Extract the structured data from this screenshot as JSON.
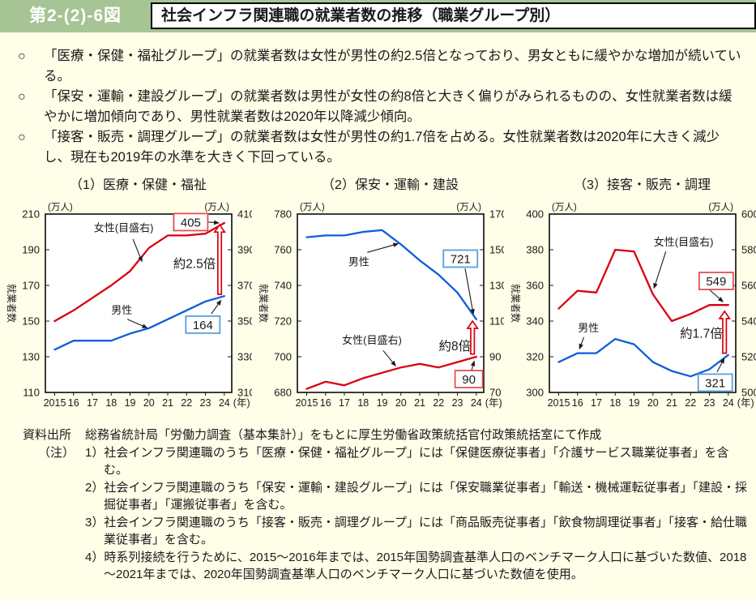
{
  "page": {
    "figure_label": "第2-(2)-6図",
    "title": "社会インフラ関連職の就業者数の推移（職業グループ別）",
    "bullet_marker": "○"
  },
  "bullets": [
    "「医療・保健・福祉グループ」の就業者数は女性が男性の約2.5倍となっており、男女ともに緩やかな増加が続いている。",
    "「保安・運輸・建設グループ」の就業者数は男性が女性の約8倍と大きく偏りがみられるものの、女性就業者数は緩やかに増加傾向であり、男性就業者数は2020年以降減少傾向。",
    "「接客・販売・調理グループ」の就業者数は女性が男性の約1.7倍を占める。女性就業者数は2020年に大きく減少し、現在も2019年の水準を大きく下回っている。"
  ],
  "colors": {
    "red": "#d7000f",
    "blue": "#0b5fd9",
    "red_box": "#e05252",
    "blue_box": "#56a0e0",
    "header_green": "#a6c494",
    "background": "#fffee8"
  },
  "chart_data": [
    {
      "type": "line",
      "number_title": "（1）医療・保健・福祉",
      "unit_left": "(万人)",
      "unit_right": "(万人)",
      "ylabel": "就業者数",
      "left_axis": {
        "min": 110,
        "max": 210,
        "ticks": [
          110,
          130,
          150,
          170,
          190,
          210
        ]
      },
      "right_axis": {
        "min": 310,
        "max": 410,
        "ticks": [
          310,
          330,
          350,
          370,
          390,
          410
        ]
      },
      "x_labels": [
        "2015",
        "16",
        "17",
        "18",
        "19",
        "20",
        "21",
        "22",
        "23",
        "24"
      ],
      "x_unit": "(年)",
      "series": [
        {
          "name": "男性",
          "axis": "left",
          "color": "blue",
          "values": [
            134,
            139,
            139,
            139,
            143,
            146,
            151,
            156,
            161,
            164
          ]
        },
        {
          "name": "女性（目盛右）",
          "axis": "right",
          "color": "red",
          "values": [
            350,
            356,
            363,
            370,
            378,
            391,
            398,
            398,
            399,
            405
          ]
        }
      ],
      "annotations": {
        "series_labels": [
          {
            "text": "女性(目盛右)",
            "tx": 0.42,
            "ty": 0.08,
            "sx": 0.47,
            "sy": 0.14,
            "ax": 0.52,
            "ay": 0.27
          },
          {
            "text": "男性",
            "tx": 0.41,
            "ty": 0.54,
            "sx": 0.44,
            "sy": 0.59,
            "ax": 0.55,
            "ay": 0.64
          }
        ],
        "ratio": {
          "text": "約2.5倍",
          "tx": 0.8,
          "ty": 0.28
        },
        "value_boxes": [
          {
            "text": "405",
            "color": "red",
            "tx": 0.78,
            "ty": 0.045,
            "sx": 0.875,
            "sy": 0.045,
            "ax": 0.935,
            "ay": 0.05
          },
          {
            "text": "164",
            "color": "blue",
            "tx": 0.845,
            "ty": 0.62,
            "sx": 0.89,
            "sy": 0.56,
            "ax": 0.945,
            "ay": 0.48
          }
        ],
        "big_arrow": {
          "x": 0.935,
          "y_from": 0.45,
          "y_to": 0.06
        }
      }
    },
    {
      "type": "line",
      "number_title": "（2）保安・運輸・建設",
      "unit_left": "(万人)",
      "unit_right": "(万人)",
      "ylabel": "就業者数",
      "left_axis": {
        "min": 680,
        "max": 780,
        "ticks": [
          680,
          700,
          720,
          740,
          760,
          780
        ]
      },
      "right_axis": {
        "min": 70,
        "max": 170,
        "ticks": [
          70,
          90,
          110,
          130,
          150,
          170
        ]
      },
      "x_labels": [
        "2015",
        "16",
        "17",
        "18",
        "19",
        "20",
        "21",
        "22",
        "23",
        "24"
      ],
      "x_unit": "(年)",
      "series": [
        {
          "name": "男性",
          "axis": "left",
          "color": "blue",
          "values": [
            767,
            768,
            768,
            770,
            771,
            763,
            754,
            746,
            736,
            721
          ]
        },
        {
          "name": "女性（目盛右）",
          "axis": "right",
          "color": "red",
          "values": [
            72,
            76,
            74,
            78,
            81,
            84,
            86,
            84,
            87,
            90
          ]
        }
      ],
      "annotations": {
        "series_labels": [
          {
            "text": "男性",
            "tx": 0.33,
            "ty": 0.27,
            "sx": 0.375,
            "sy": 0.215,
            "ax": 0.545,
            "ay": 0.165
          },
          {
            "text": "女性(目盛右)",
            "tx": 0.4,
            "ty": 0.71,
            "sx": 0.46,
            "sy": 0.765,
            "ax": 0.53,
            "ay": 0.855
          }
        ],
        "ratio": {
          "text": "約8倍",
          "tx": 0.845,
          "ty": 0.74
        },
        "value_boxes": [
          {
            "text": "721",
            "color": "blue",
            "tx": 0.875,
            "ty": 0.25,
            "sx": 0.9,
            "sy": 0.305,
            "ax": 0.945,
            "ay": 0.565
          },
          {
            "text": "90",
            "color": "red",
            "tx": 0.92,
            "ty": 0.925,
            "sx": 0.935,
            "sy": 0.875,
            "ax": 0.95,
            "ay": 0.82
          }
        ],
        "big_arrow": {
          "x": 0.94,
          "y_from": 0.785,
          "y_to": 0.6
        }
      }
    },
    {
      "type": "line",
      "number_title": "（3）接客・販売・調理",
      "unit_left": "(万人)",
      "unit_right": "(万人)",
      "ylabel": "就業者数",
      "left_axis": {
        "min": 300,
        "max": 400,
        "ticks": [
          300,
          320,
          340,
          360,
          380,
          400
        ]
      },
      "right_axis": {
        "min": 500,
        "max": 600,
        "ticks": [
          500,
          520,
          540,
          560,
          580,
          600
        ]
      },
      "x_labels": [
        "2015",
        "16",
        "17",
        "18",
        "19",
        "20",
        "21",
        "22",
        "23",
        "24"
      ],
      "x_unit": "(年)",
      "series": [
        {
          "name": "男性",
          "axis": "left",
          "color": "blue",
          "values": [
            317,
            322,
            322,
            330,
            327,
            317,
            312,
            309,
            313,
            321
          ]
        },
        {
          "name": "女性（目盛右）",
          "axis": "right",
          "color": "red",
          "values": [
            547,
            557,
            556,
            580,
            579,
            555,
            540,
            544,
            549,
            549
          ]
        }
      ],
      "annotations": {
        "series_labels": [
          {
            "text": "女性(目盛右)",
            "tx": 0.72,
            "ty": 0.16,
            "sx": 0.625,
            "sy": 0.21,
            "ax": 0.56,
            "ay": 0.42
          },
          {
            "text": "男性",
            "tx": 0.21,
            "ty": 0.64,
            "sx": 0.185,
            "sy": 0.69,
            "ax": 0.16,
            "ay": 0.76
          }
        ],
        "ratio": {
          "text": "約1.7倍",
          "tx": 0.815,
          "ty": 0.67
        },
        "value_boxes": [
          {
            "text": "549",
            "color": "red",
            "tx": 0.895,
            "ty": 0.375,
            "sx": 0.86,
            "sy": 0.425,
            "ax": 0.935,
            "ay": 0.495
          },
          {
            "text": "321",
            "color": "blue",
            "tx": 0.89,
            "ty": 0.945,
            "sx": 0.9,
            "sy": 0.885,
            "ax": 0.94,
            "ay": 0.805
          }
        ],
        "big_arrow": {
          "x": 0.94,
          "y_from": 0.78,
          "y_to": 0.545
        }
      }
    }
  ],
  "source": {
    "label": "資料出所",
    "text": "総務省統計局「労働力調査（基本集計）」をもとに厚生労働省政策統括官付政策統括室にて作成"
  },
  "notes": {
    "label": "（注）",
    "items": [
      {
        "marker": "1）",
        "text": "社会インフラ関連職のうち「医療・保健・福祉グループ」には「保健医療従事者」「介護サービス職業従事者」を含む。"
      },
      {
        "marker": "2）",
        "text": "社会インフラ関連職のうち「保安・運輸・建設グループ」には「保安職業従事者」「輸送・機械運転従事者」「建設・採掘従事者」「運搬従事者」を含む。"
      },
      {
        "marker": "3）",
        "text": "社会インフラ関連職のうち「接客・販売・調理グループ」には「商品販売従事者」「飲食物調理従事者」「接客・給仕職業従事者」を含む。"
      },
      {
        "marker": "4）",
        "text": "時系列接続を行うために、2015～2016年までは、2015年国勢調査基準人口のベンチマーク人口に基づいた数値、2018～2021年までは、2020年国勢調査基準人口のベンチマーク人口に基づいた数値を使用。"
      }
    ]
  }
}
